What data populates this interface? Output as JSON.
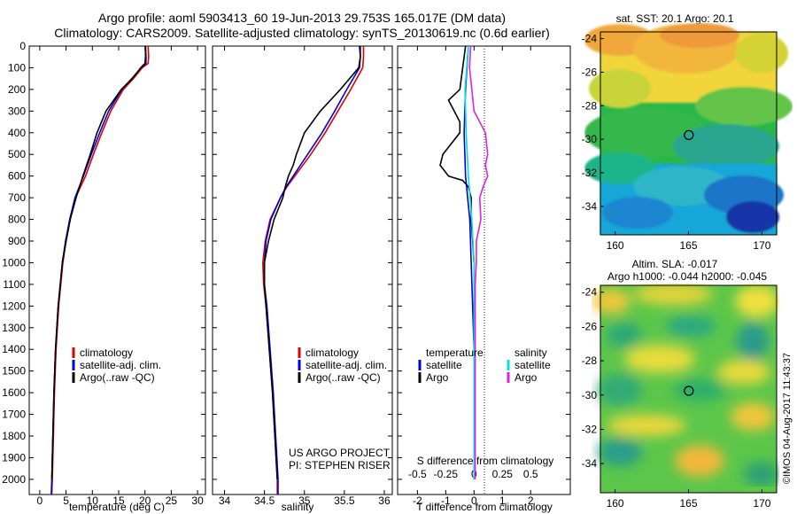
{
  "title_line1": "Argo profile: aoml 5903413_60 19-Jun-2013 29.753S 165.017E (DM data)",
  "title_line2": "Climatology: CARS2009. Satellite-adjusted climatology: synTS_20130619.nc (0.6d earlier)",
  "project_note_line1": "US ARGO PROJECT",
  "project_note_line2": "PI: STEPHEN RISER",
  "timestamp_label": "©IMOS 04-Aug-2017 11:43:37",
  "colors": {
    "climatology": "#e00000",
    "satellite": "#0000dd",
    "argo": "#000000",
    "argo_salinity": "#e020e0",
    "satellite_salinity": "#00e0e0"
  },
  "chart_data": [
    {
      "type": "line",
      "xlabel": "temperature (deg C)",
      "y_ticks": [
        "0",
        "100",
        "200",
        "300",
        "400",
        "500",
        "600",
        "700",
        "800",
        "900",
        "1000",
        "1100",
        "1200",
        "1300",
        "1400",
        "1500",
        "1600",
        "1700",
        "1800",
        "1900",
        "2000"
      ],
      "x_ticks": [
        "0",
        "5",
        "10",
        "15",
        "20",
        "25",
        "30"
      ],
      "xlim": [
        -2,
        31.5
      ],
      "ylim": [
        2070,
        0
      ],
      "legend": [
        "climatology",
        "satellite-adj. clim.",
        "Argo(..raw -QC)"
      ],
      "series": [
        {
          "name": "climatology",
          "y": [
            0,
            50,
            80,
            100,
            150,
            200,
            300,
            400,
            500,
            600,
            700,
            800,
            900,
            1000,
            1200,
            1400,
            1600,
            1800,
            2000,
            2070
          ],
          "x": [
            20.6,
            20.7,
            20.6,
            19.5,
            17.8,
            15.9,
            13.5,
            11.8,
            10.2,
            8.7,
            6.8,
            5.8,
            5.0,
            4.4,
            3.6,
            3.1,
            2.8,
            2.6,
            2.4,
            2.3
          ]
        },
        {
          "name": "satellite-adj. clim.",
          "y": [
            0,
            50,
            80,
            100,
            150,
            200,
            300,
            400,
            500,
            600,
            700,
            800,
            900,
            1000,
            1200,
            1400,
            1600,
            1800,
            2000,
            2070
          ],
          "x": [
            20.1,
            20.2,
            20.2,
            19.3,
            17.5,
            15.6,
            13.1,
            11.4,
            9.8,
            8.3,
            6.7,
            5.7,
            4.9,
            4.3,
            3.5,
            3.0,
            2.7,
            2.5,
            2.3,
            2.2
          ]
        },
        {
          "name": "Argo(..raw -QC)",
          "y": [
            0,
            50,
            80,
            100,
            150,
            200,
            300,
            400,
            500,
            600,
            700,
            800,
            900,
            1000,
            1200,
            1400,
            1600,
            1800,
            2000
          ],
          "x": [
            20.1,
            20.1,
            20.0,
            19.2,
            17.6,
            15.5,
            12.6,
            10.9,
            9.6,
            8.2,
            6.9,
            5.8,
            5.0,
            4.3,
            3.5,
            3.0,
            2.7,
            2.5,
            2.3
          ]
        }
      ]
    },
    {
      "type": "line",
      "xlabel": "salinity",
      "x_ticks": [
        "34",
        "34.5",
        "35",
        "35.5",
        "36"
      ],
      "xlim": [
        33.85,
        36.1
      ],
      "ylim": [
        2070,
        0
      ],
      "legend": [
        "climatology",
        "satellite-adj. clim.",
        "Argo(..raw -QC)"
      ],
      "series": [
        {
          "name": "climatology",
          "y": [
            0,
            50,
            100,
            200,
            300,
            400,
            500,
            600,
            650,
            700,
            800,
            900,
            1000,
            1100,
            1200,
            1400,
            1600,
            1800,
            2000,
            2070
          ],
          "x": [
            35.74,
            35.74,
            35.73,
            35.58,
            35.42,
            35.26,
            35.08,
            34.88,
            34.78,
            34.7,
            34.57,
            34.51,
            34.48,
            34.49,
            34.52,
            34.56,
            34.6,
            34.63,
            34.66,
            34.66
          ]
        },
        {
          "name": "satellite-adj. clim.",
          "y": [
            0,
            50,
            100,
            200,
            300,
            400,
            500,
            600,
            650,
            700,
            800,
            900,
            1000,
            1100,
            1200,
            1400,
            1600,
            1800,
            2000,
            2070
          ],
          "x": [
            35.7,
            35.7,
            35.69,
            35.53,
            35.38,
            35.22,
            35.04,
            34.86,
            34.77,
            34.7,
            34.58,
            34.52,
            34.5,
            34.5,
            34.53,
            34.57,
            34.61,
            34.64,
            34.67,
            34.67
          ]
        },
        {
          "name": "Argo(..raw -QC)",
          "y": [
            0,
            50,
            100,
            200,
            300,
            400,
            500,
            550,
            600,
            650,
            700,
            800,
            900,
            1000,
            1100,
            1200,
            1400,
            1600,
            1800,
            2000
          ],
          "x": [
            35.69,
            35.7,
            35.68,
            35.45,
            35.2,
            35.0,
            34.9,
            34.86,
            34.8,
            34.76,
            34.73,
            34.62,
            34.55,
            34.5,
            34.5,
            34.52,
            34.56,
            34.6,
            34.63,
            34.66
          ]
        }
      ]
    },
    {
      "type": "line",
      "xlabel": "T difference from climatology",
      "top_label": "S difference from climatology",
      "x_ticks": [
        "-2",
        "-1",
        "0",
        "1",
        "2"
      ],
      "top_ticks": [
        "-0.5",
        "-0.25",
        "0",
        "0.25",
        "0.5"
      ],
      "xlim": [
        -2.7,
        3.4
      ],
      "ylim": [
        2070,
        0
      ],
      "legend_groups": [
        {
          "title": "temperature",
          "items": [
            "satellite",
            "Argo"
          ]
        },
        {
          "title": "salinity",
          "items": [
            "satellite",
            "Argo"
          ]
        }
      ],
      "series": [
        {
          "name": "temperature satellite",
          "y": [
            0,
            100,
            200,
            400,
            600,
            800,
            1000,
            1200,
            1400,
            2000
          ],
          "x": [
            -0.2,
            -0.25,
            -0.3,
            -0.35,
            -0.3,
            -0.15,
            -0.1,
            -0.05,
            0.0,
            0.0
          ]
        },
        {
          "name": "temperature Argo",
          "y": [
            0,
            100,
            200,
            250,
            300,
            350,
            400,
            450,
            500,
            550,
            600,
            620,
            650,
            700,
            800,
            1000,
            2000
          ],
          "x": [
            -0.3,
            -0.4,
            -0.5,
            -0.9,
            -0.7,
            -0.5,
            -0.5,
            -0.8,
            -1.1,
            -1.2,
            -0.9,
            -0.4,
            -0.2,
            -0.1,
            -0.1,
            0.0,
            0.0
          ]
        },
        {
          "name": "salinity satellite",
          "y": [
            0,
            200,
            400,
            600,
            800,
            1000,
            2000
          ],
          "x": [
            -0.05,
            -0.08,
            -0.07,
            -0.05,
            -0.02,
            0.0,
            0.0
          ]
        },
        {
          "name": "salinity Argo",
          "y": [
            0,
            100,
            200,
            300,
            400,
            500,
            550,
            600,
            650,
            700,
            800,
            900,
            1000,
            1100,
            2000
          ],
          "x": [
            -0.03,
            -0.04,
            -0.02,
            0.0,
            0.1,
            0.12,
            0.1,
            0.12,
            0.08,
            0.05,
            0.06,
            0.02,
            0.02,
            0.01,
            0.01
          ]
        }
      ]
    },
    {
      "type": "heatmap",
      "title": "sat. SST: 20.1  Argo: 20.1",
      "x_ticks": [
        "160",
        "165",
        "170"
      ],
      "y_ticks": [
        "-24",
        "-26",
        "-28",
        "-30",
        "-32",
        "-34"
      ],
      "xlim": [
        159,
        171
      ],
      "ylim": [
        -35.7,
        -23.6
      ],
      "marker": {
        "lon": 165.017,
        "lat": -29.753
      }
    },
    {
      "type": "heatmap",
      "title": "Altim. SLA: -0.017",
      "subtitle": "Argo h1000: -0.044 h2000: -0.045",
      "x_ticks": [
        "160",
        "165",
        "170"
      ],
      "y_ticks": [
        "-24",
        "-26",
        "-28",
        "-30",
        "-32",
        "-34"
      ],
      "xlim": [
        159,
        171
      ],
      "ylim": [
        -35.7,
        -23.6
      ],
      "marker": {
        "lon": 165.017,
        "lat": -29.753
      }
    }
  ]
}
